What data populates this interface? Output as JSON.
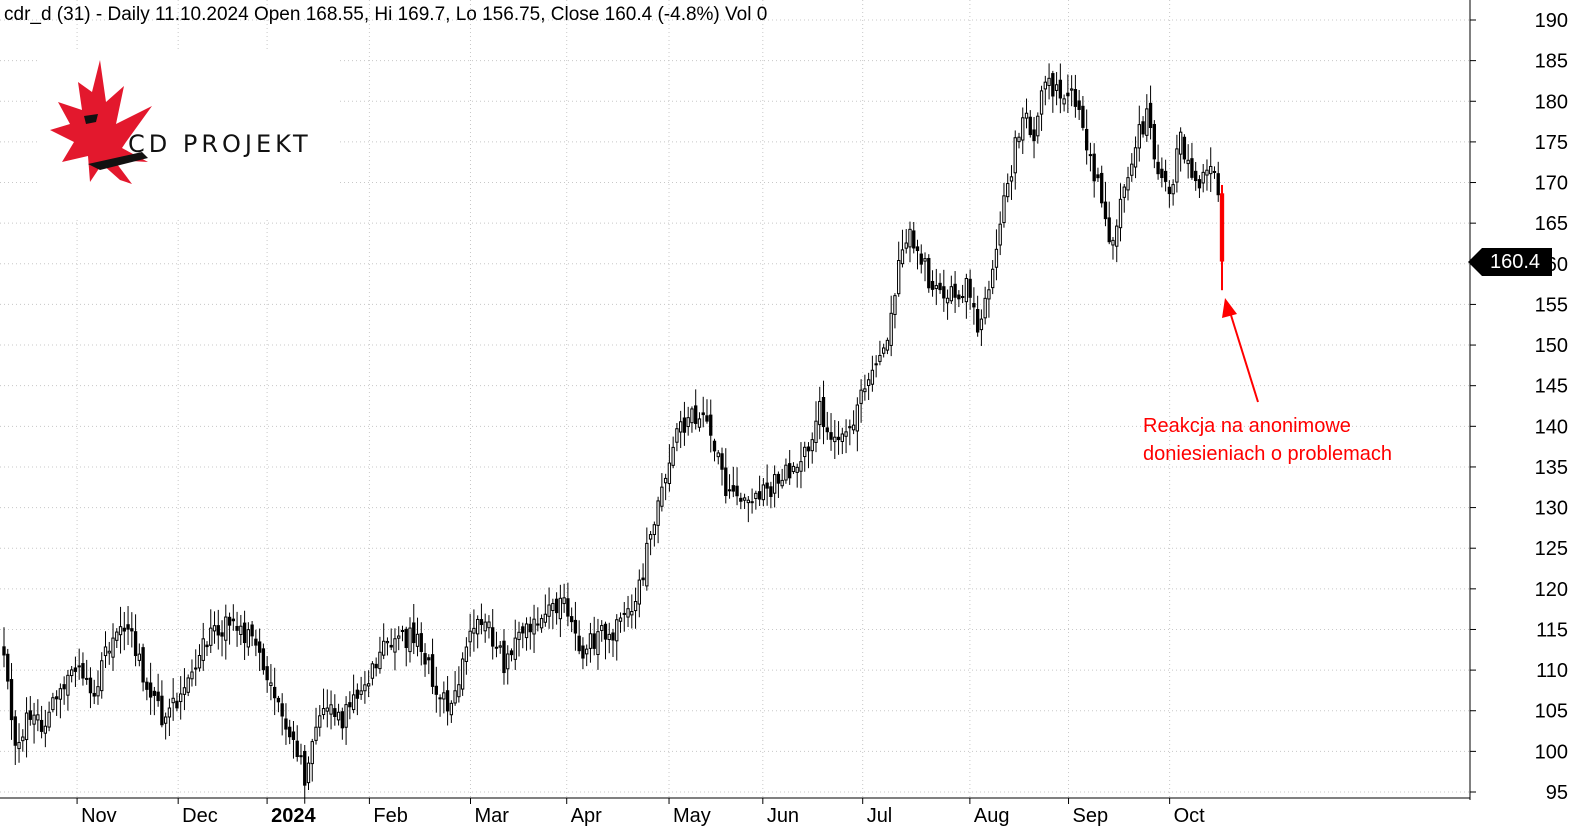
{
  "header": {
    "title": "cdr_d (31) - Daily 11.10.2024 Open 168.55, Hi 169.7, Lo 156.75, Close 160.4 (-4.8%) Vol 0"
  },
  "logo": {
    "text": "CD PROJEKT",
    "icon": "red-bird-icon",
    "color": "#e3182d"
  },
  "last_price": {
    "label": "160.4",
    "color": "#000000"
  },
  "annotation": {
    "line1": "Reakcja na anonimowe",
    "line2": "doniesieniach o problemach",
    "color": "#ff0000"
  },
  "chart_data": {
    "type": "candlestick",
    "symbol": "cdr_d",
    "interval": "Daily",
    "title": "cdr_d (31) - Daily 11.10.2024 Open 168.55, Hi 169.7, Lo 156.75, Close 160.4 (-4.8%) Vol 0",
    "last": {
      "date": "11.10.2024",
      "open": 168.55,
      "high": 169.7,
      "low": 156.75,
      "close": 160.4,
      "change_pct": -4.8,
      "volume": 0
    },
    "ylim": [
      95,
      190
    ],
    "y_ticks": [
      95,
      100,
      105,
      110,
      115,
      120,
      125,
      130,
      135,
      140,
      145,
      150,
      155,
      160,
      165,
      170,
      175,
      180,
      185,
      190
    ],
    "x_ticks": [
      "Nov",
      "Dec",
      "2024",
      "Feb",
      "Mar",
      "Apr",
      "May",
      "Jun",
      "Jul",
      "Aug",
      "Sep",
      "Oct"
    ],
    "grid": true,
    "y_axis_position": "right",
    "path": [
      {
        "i": 0,
        "p": 112
      },
      {
        "i": 3,
        "p": 101
      },
      {
        "i": 6,
        "p": 104
      },
      {
        "i": 10,
        "p": 103
      },
      {
        "i": 14,
        "p": 107
      },
      {
        "i": 19,
        "p": 110
      },
      {
        "i": 24,
        "p": 108
      },
      {
        "i": 29,
        "p": 114
      },
      {
        "i": 33,
        "p": 115
      },
      {
        "i": 38,
        "p": 108
      },
      {
        "i": 42,
        "p": 104
      },
      {
        "i": 48,
        "p": 107
      },
      {
        "i": 54,
        "p": 114
      },
      {
        "i": 60,
        "p": 116
      },
      {
        "i": 65,
        "p": 114
      },
      {
        "i": 70,
        "p": 110
      },
      {
        "i": 75,
        "p": 104
      },
      {
        "i": 80,
        "p": 97
      },
      {
        "i": 85,
        "p": 105
      },
      {
        "i": 90,
        "p": 104
      },
      {
        "i": 95,
        "p": 108
      },
      {
        "i": 100,
        "p": 112
      },
      {
        "i": 105,
        "p": 114
      },
      {
        "i": 110,
        "p": 114
      },
      {
        "i": 114,
        "p": 109
      },
      {
        "i": 119,
        "p": 105
      },
      {
        "i": 124,
        "p": 116
      },
      {
        "i": 129,
        "p": 115
      },
      {
        "i": 133,
        "p": 111
      },
      {
        "i": 138,
        "p": 115
      },
      {
        "i": 144,
        "p": 117
      },
      {
        "i": 149,
        "p": 118
      },
      {
        "i": 153,
        "p": 112
      },
      {
        "i": 158,
        "p": 114
      },
      {
        "i": 163,
        "p": 115
      },
      {
        "i": 167,
        "p": 118
      },
      {
        "i": 170,
        "p": 122
      },
      {
        "i": 173,
        "p": 129
      },
      {
        "i": 176,
        "p": 134
      },
      {
        "i": 179,
        "p": 140
      },
      {
        "i": 183,
        "p": 141
      },
      {
        "i": 187,
        "p": 141
      },
      {
        "i": 190,
        "p": 136
      },
      {
        "i": 193,
        "p": 131
      },
      {
        "i": 198,
        "p": 132
      },
      {
        "i": 203,
        "p": 132
      },
      {
        "i": 208,
        "p": 134
      },
      {
        "i": 213,
        "p": 137
      },
      {
        "i": 217,
        "p": 142
      },
      {
        "i": 221,
        "p": 138
      },
      {
        "i": 225,
        "p": 140
      },
      {
        "i": 229,
        "p": 145
      },
      {
        "i": 232,
        "p": 147
      },
      {
        "i": 235,
        "p": 150
      },
      {
        "i": 238,
        "p": 160
      },
      {
        "i": 241,
        "p": 163
      },
      {
        "i": 244,
        "p": 161
      },
      {
        "i": 247,
        "p": 157
      },
      {
        "i": 250,
        "p": 156
      },
      {
        "i": 253,
        "p": 156
      },
      {
        "i": 256,
        "p": 157
      },
      {
        "i": 259,
        "p": 152
      },
      {
        "i": 262,
        "p": 158
      },
      {
        "i": 265,
        "p": 165
      },
      {
        "i": 268,
        "p": 172
      },
      {
        "i": 271,
        "p": 179
      },
      {
        "i": 274,
        "p": 176
      },
      {
        "i": 277,
        "p": 182
      },
      {
        "i": 280,
        "p": 181
      },
      {
        "i": 283,
        "p": 181
      },
      {
        "i": 286,
        "p": 179
      },
      {
        "i": 289,
        "p": 173
      },
      {
        "i": 292,
        "p": 168
      },
      {
        "i": 295,
        "p": 162
      },
      {
        "i": 298,
        "p": 169
      },
      {
        "i": 301,
        "p": 175
      },
      {
        "i": 304,
        "p": 178
      },
      {
        "i": 307,
        "p": 172
      },
      {
        "i": 310,
        "p": 169
      },
      {
        "i": 313,
        "p": 175
      },
      {
        "i": 316,
        "p": 171
      },
      {
        "i": 319,
        "p": 170
      },
      {
        "i": 322,
        "p": 172
      },
      {
        "i": 323,
        "p": 168.5
      },
      {
        "i": 324,
        "p": 160.4
      }
    ]
  }
}
